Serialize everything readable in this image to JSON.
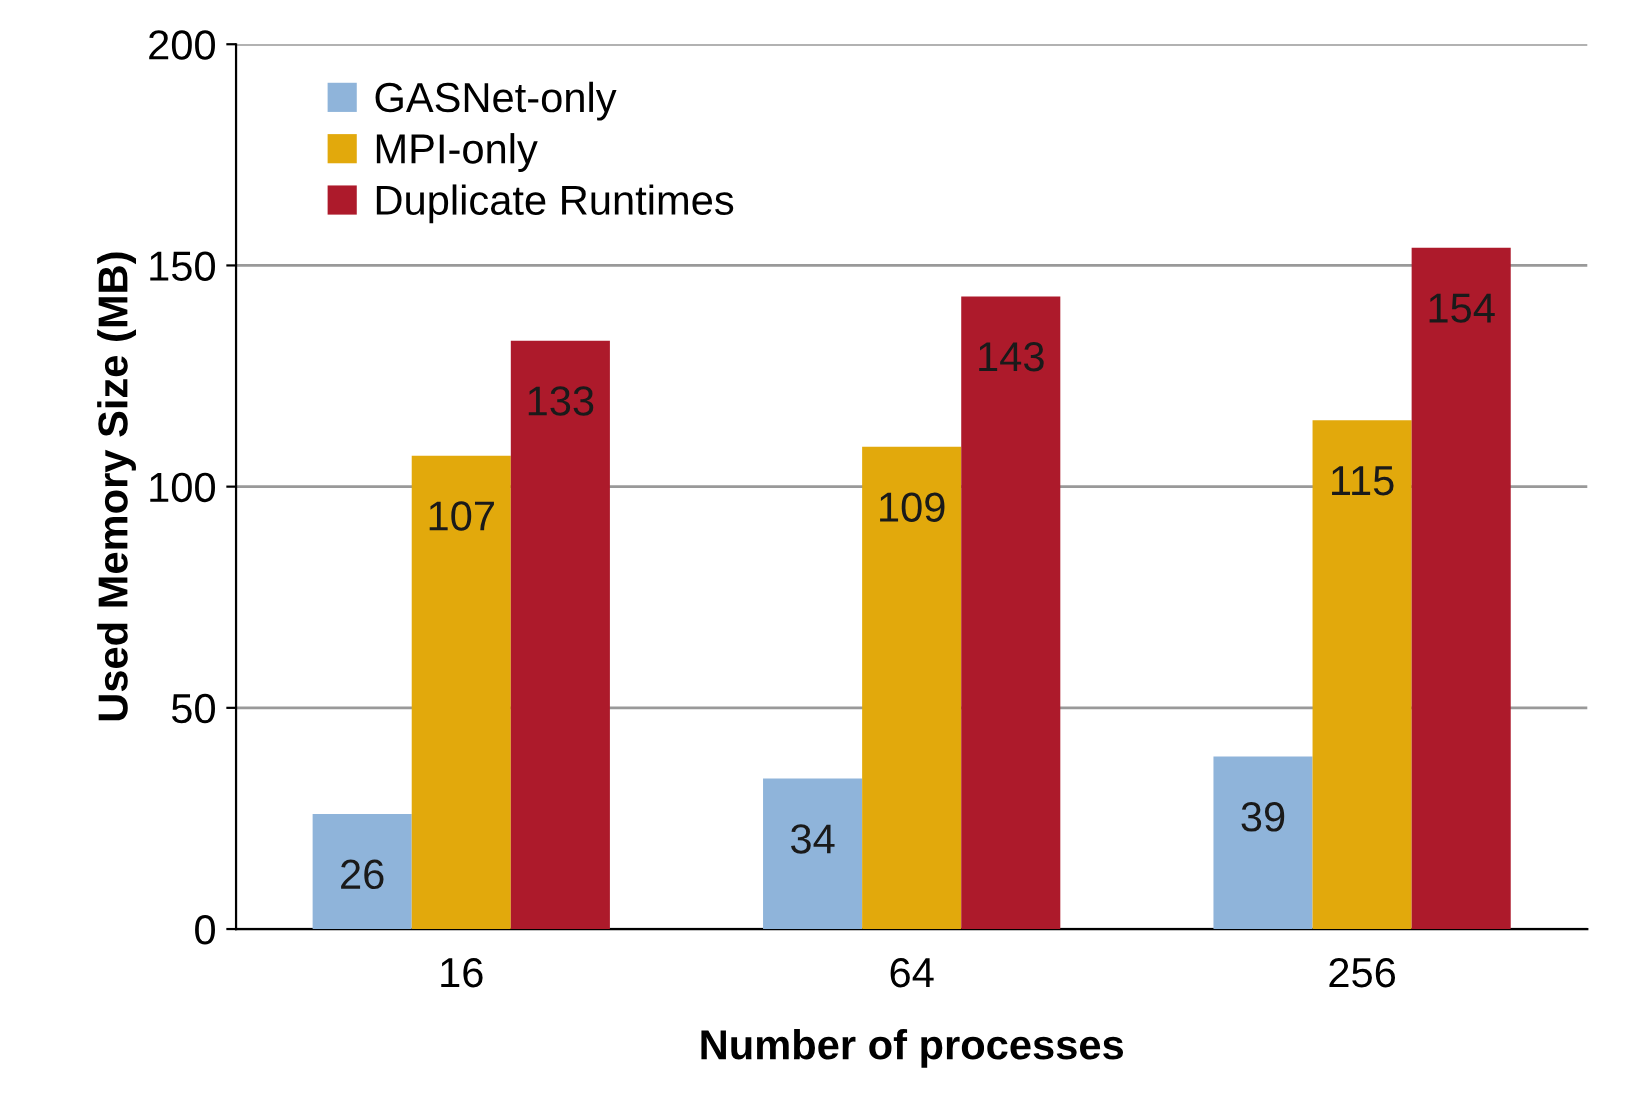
{
  "chart_data": {
    "type": "bar",
    "xlabel": "Number of processes",
    "ylabel": "Used Memory Size (MB)",
    "categories": [
      "16",
      "64",
      "256"
    ],
    "series": [
      {
        "name": "GASNet-only",
        "color": "#8fb4da",
        "values": [
          26,
          34,
          39
        ]
      },
      {
        "name": "MPI-only",
        "color": "#e2a90c",
        "values": [
          107,
          109,
          115
        ]
      },
      {
        "name": "Duplicate Runtimes",
        "color": "#ad1a2b",
        "values": [
          133,
          143,
          154
        ]
      }
    ],
    "ylim": [
      0,
      200
    ],
    "yticks": [
      0,
      50,
      100,
      150,
      200
    ],
    "grid": "y",
    "legend": "top left",
    "data_labels": true
  }
}
